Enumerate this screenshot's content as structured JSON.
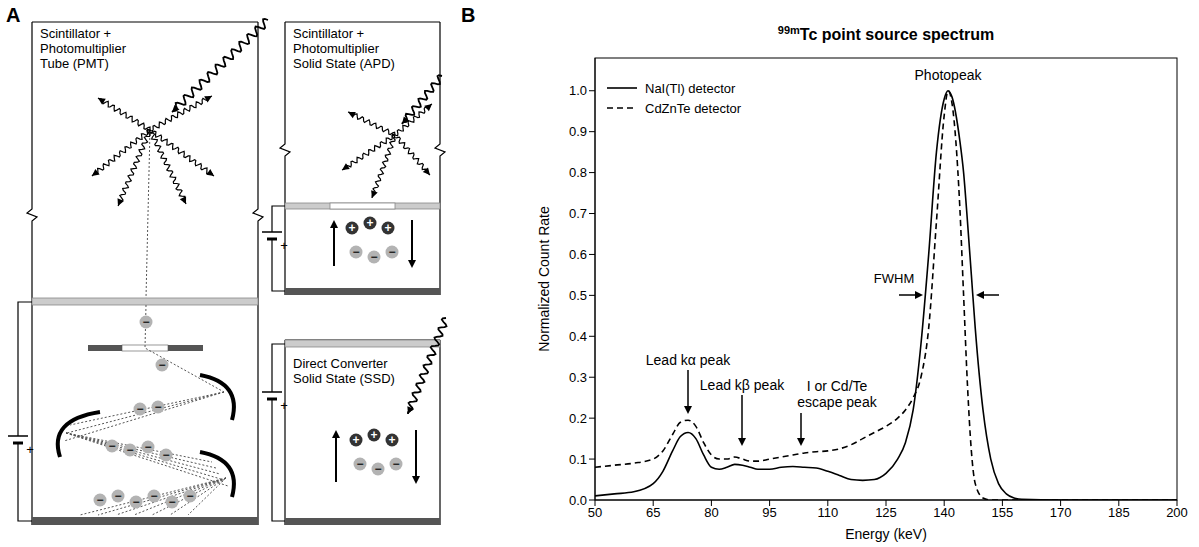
{
  "diagram": {
    "panel": "A",
    "detectors": [
      {
        "lines": [
          "Scintillator +",
          "Photomultiplier",
          "Tube (PMT)"
        ]
      },
      {
        "lines": [
          "Scintillator +",
          "Photomultiplier",
          "Solid State (APD)"
        ]
      },
      {
        "lines": [
          "Direct Converter",
          "Solid State (SSD)"
        ]
      }
    ],
    "electron_sign": "−",
    "hole_sign": "+",
    "battery_sign": "+"
  },
  "chart_data": {
    "type": "line",
    "panel": "B",
    "title": "99mTc point source spectrum",
    "x_label": "Energy (keV)",
    "y_label": "Normalized Count Rate",
    "x": [
      50,
      55,
      60,
      65,
      67.5,
      70,
      72,
      74,
      76,
      78,
      80,
      82,
      84,
      86,
      88,
      90,
      92,
      95,
      98,
      101,
      104,
      107,
      110,
      113,
      116,
      119,
      122,
      125,
      128,
      130,
      132,
      134,
      136,
      138,
      140,
      141,
      142,
      144,
      145,
      146,
      147,
      148,
      150,
      152,
      154,
      156,
      158,
      160,
      170,
      200
    ],
    "series": [
      {
        "name": "NaI(Tl) detector",
        "color": "#000000",
        "line_style": "solid",
        "values": [
          0.01,
          0.015,
          0.02,
          0.04,
          0.07,
          0.12,
          0.155,
          0.165,
          0.15,
          0.11,
          0.08,
          0.075,
          0.08,
          0.087,
          0.085,
          0.08,
          0.075,
          0.075,
          0.08,
          0.082,
          0.08,
          0.078,
          0.07,
          0.06,
          0.05,
          0.048,
          0.05,
          0.065,
          0.1,
          0.14,
          0.22,
          0.38,
          0.6,
          0.85,
          0.98,
          1.0,
          0.985,
          0.88,
          0.8,
          0.68,
          0.55,
          0.42,
          0.22,
          0.1,
          0.04,
          0.015,
          0.005,
          0.002,
          0,
          0
        ]
      },
      {
        "name": "CdZnTe detector",
        "color": "#000000",
        "line_style": "dashed",
        "values": [
          0.08,
          0.085,
          0.09,
          0.1,
          0.12,
          0.16,
          0.19,
          0.195,
          0.18,
          0.14,
          0.11,
          0.1,
          0.1,
          0.105,
          0.1,
          0.095,
          0.095,
          0.1,
          0.105,
          0.11,
          0.115,
          0.118,
          0.12,
          0.125,
          0.135,
          0.15,
          0.165,
          0.18,
          0.2,
          0.22,
          0.25,
          0.3,
          0.42,
          0.68,
          0.94,
          1.0,
          0.97,
          0.72,
          0.5,
          0.28,
          0.12,
          0.04,
          0.005,
          0,
          0,
          0,
          0,
          0,
          0,
          0
        ]
      }
    ],
    "xlim": [
      50,
      200
    ],
    "xticks": [
      50,
      65,
      80,
      95,
      110,
      125,
      140,
      155,
      170,
      185,
      200
    ],
    "ylim": [
      0,
      1.08
    ],
    "yticks": [
      {
        "value": 0,
        "label": "0.0"
      },
      {
        "value": 0.1,
        "label": "0.1"
      },
      {
        "value": 0.2,
        "label": "0.2"
      },
      {
        "value": 0.3,
        "label": "0.3"
      },
      {
        "value": 0.4,
        "label": "0.4"
      },
      {
        "value": 0.5,
        "label": "0.5"
      },
      {
        "value": 0.6,
        "label": "0.6"
      },
      {
        "value": 0.7,
        "label": "0.7"
      },
      {
        "value": 0.8,
        "label": "0.8"
      },
      {
        "value": 0.9,
        "label": "0.9"
      },
      {
        "value": 1,
        "label": "1.0"
      }
    ],
    "grid": false,
    "legend": "upper left",
    "annotations": [
      "Photopeak",
      "FWHM",
      "Lead kα peak",
      "Lead kβ peak",
      "I or Cd/Te escape peak"
    ]
  }
}
